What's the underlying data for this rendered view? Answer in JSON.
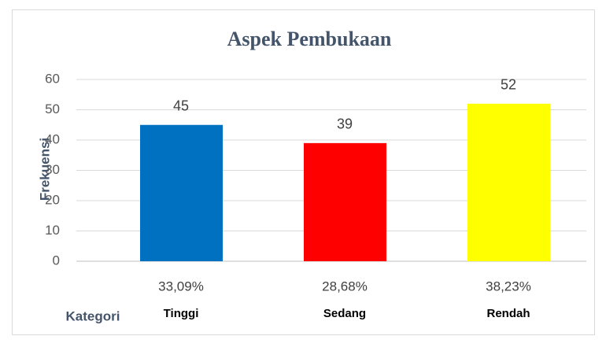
{
  "chart_data": {
    "type": "bar",
    "title": "Aspek Pembukaan",
    "categories": [
      "Tinggi",
      "Sedang",
      "Rendah"
    ],
    "category_sublabels": [
      "33,09%",
      "28,68%",
      "38,23%"
    ],
    "values": [
      45,
      39,
      52
    ],
    "colors": [
      "#0070c0",
      "#ff0000",
      "#ffff00"
    ],
    "x_label": "Kategori",
    "y_label": "Frekuensi",
    "ylim": [
      0,
      60
    ],
    "yticks": [
      0,
      10,
      20,
      30,
      40,
      50,
      60
    ],
    "grid": true
  }
}
